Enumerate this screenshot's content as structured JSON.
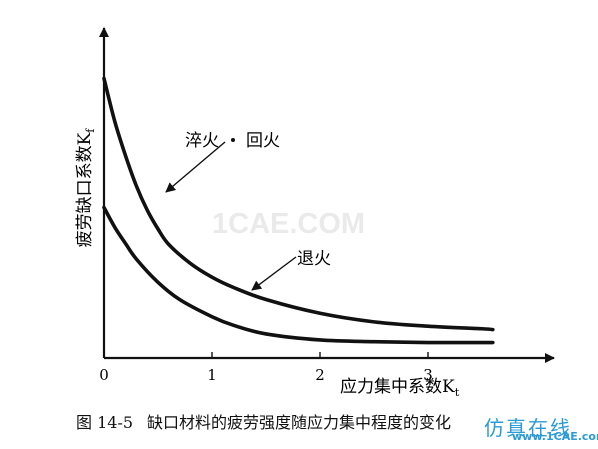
{
  "figure": {
    "caption_number": "图 14-5",
    "caption_text": "缺口材料的疲劳强度随应力集中程度的变化",
    "watermark_center": "1CAE.COM",
    "watermark_corner": "仿真在线",
    "watermark_corner_url": "www.1CAE.com"
  },
  "chart_data": {
    "type": "line",
    "title": "",
    "xlabel": "应力集中系数K",
    "xlabel_subscript": "t",
    "ylabel": "疲劳缺口系数K",
    "ylabel_subscript": "f",
    "xlim": [
      0,
      4
    ],
    "x_ticks": [
      0,
      1,
      2,
      3
    ],
    "y_ticks": [],
    "grid": false,
    "series": [
      {
        "name": "淬火 • 回火",
        "x": [
          0,
          0.1,
          0.2,
          0.3,
          0.4,
          0.5,
          0.6,
          0.8,
          1.0,
          1.2,
          1.5,
          2.0,
          2.5,
          3.0,
          3.5,
          3.6
        ],
        "y": [
          3.25,
          2.75,
          2.35,
          2.0,
          1.72,
          1.5,
          1.32,
          1.1,
          0.94,
          0.82,
          0.68,
          0.52,
          0.42,
          0.37,
          0.34,
          0.33
        ]
      },
      {
        "name": "退火",
        "x": [
          0,
          0.1,
          0.2,
          0.3,
          0.5,
          0.7,
          1.0,
          1.2,
          1.5,
          2.0,
          2.5,
          3.0,
          3.5,
          3.6
        ],
        "y": [
          1.75,
          1.52,
          1.33,
          1.15,
          0.88,
          0.68,
          0.48,
          0.38,
          0.28,
          0.21,
          0.19,
          0.18,
          0.18,
          0.18
        ]
      }
    ],
    "annotations": [
      {
        "text": "淬火",
        "series": 0
      },
      {
        "text": "回火",
        "series": 0
      },
      {
        "text": "退火",
        "series": 1
      }
    ]
  }
}
